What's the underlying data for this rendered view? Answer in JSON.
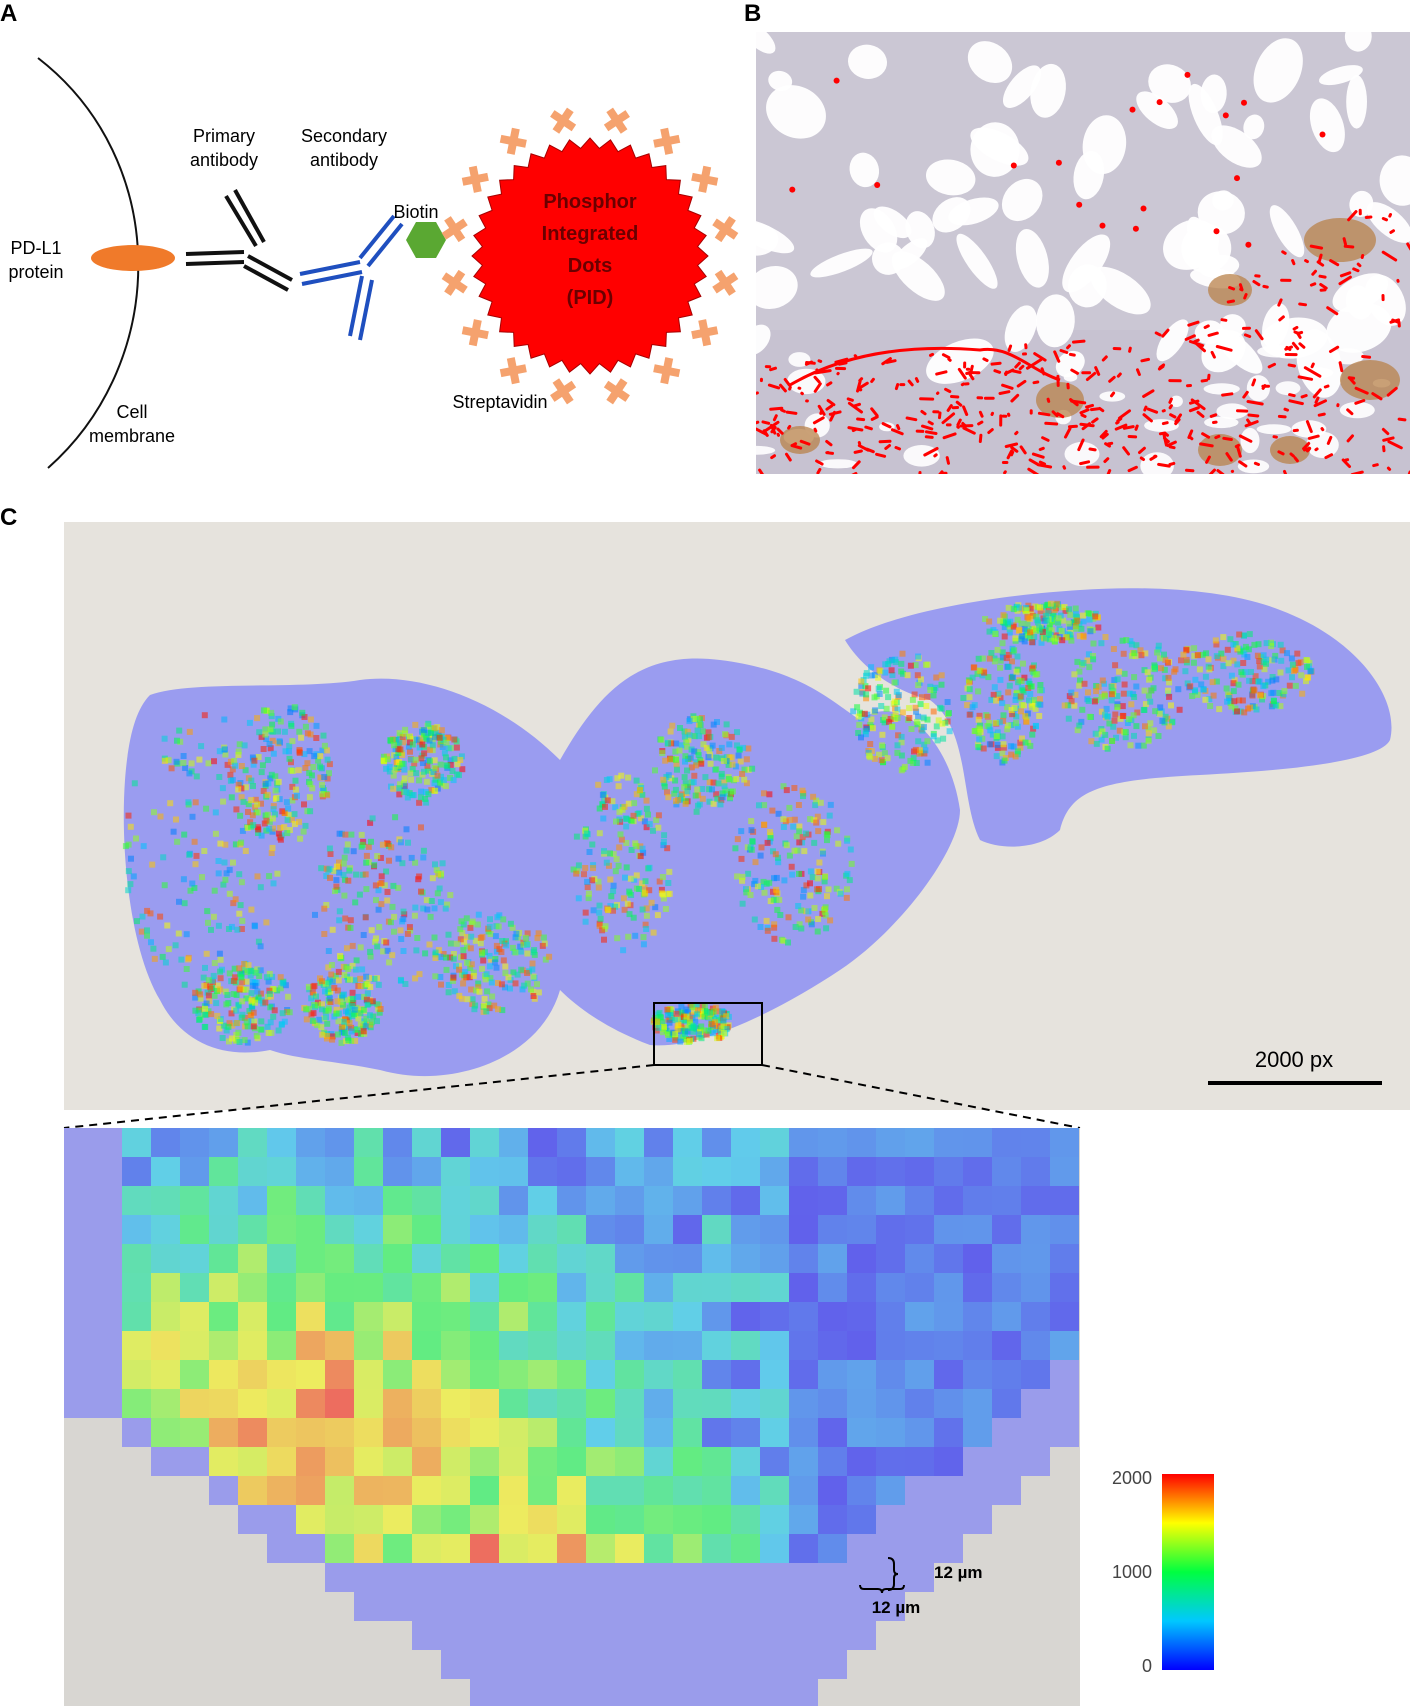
{
  "panels": {
    "a": {
      "letter": "A"
    },
    "b": {
      "letter": "B"
    },
    "c": {
      "letter": "C"
    }
  },
  "schematic": {
    "pdl1_label": [
      "PD-L1",
      "protein"
    ],
    "primary_label": [
      "Primary",
      "antibody"
    ],
    "secondary_label": [
      "Secondary",
      "antibody"
    ],
    "biotin_label": "Biotin",
    "pid_label": [
      "Phosphor",
      "Integrated",
      "Dots",
      "(PID)"
    ],
    "streptavidin_label": "Streptavidin",
    "membrane_label": [
      "Cell",
      "membrane"
    ]
  },
  "overview": {
    "scale_bar_label": "2000 px"
  },
  "zoom": {
    "pixel_label_vertical": "12 µm",
    "pixel_label_horizontal": "12 µm"
  },
  "colorbar": {
    "max_label": "2000",
    "mid_label": "1000",
    "min_label": "0"
  },
  "colors": {
    "pdl1": "#f07a2a",
    "primary_antibody": "#111111",
    "secondary_antibody": "#1f4fbf",
    "biotin": "#5aa832",
    "pid": "#ff0000",
    "streptavidin": "#f5a26e",
    "mask": "#9a9cf0",
    "slide_bg": "#e6e3dd"
  }
}
